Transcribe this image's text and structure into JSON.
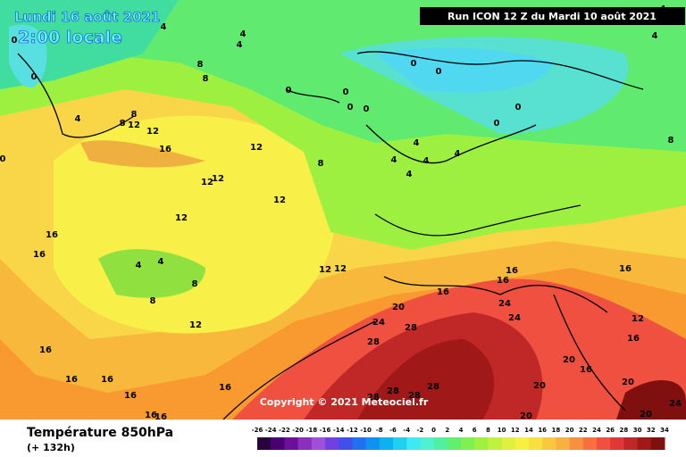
{
  "header": {
    "date": "Lundi 16 août 2021",
    "time": "2:00 locale",
    "run": "Run ICON 12 Z du Mardi 10 août 2021"
  },
  "copyright": "Copyright © 2021 Meteociel.fr",
  "footer": {
    "title": "Température 850hPa",
    "lead": "(+ 132h)"
  },
  "legend": {
    "ticks": [
      -26,
      -24,
      -22,
      -20,
      -18,
      -16,
      -14,
      -12,
      -10,
      -8,
      -6,
      -4,
      -2,
      0,
      2,
      4,
      6,
      8,
      10,
      12,
      14,
      16,
      18,
      20,
      22,
      24,
      26,
      28,
      30,
      32,
      34
    ],
    "colors": [
      "#2a0040",
      "#4a0070",
      "#6a109a",
      "#8a30c0",
      "#a050d8",
      "#7040e0",
      "#4050e8",
      "#2070f0",
      "#1090f0",
      "#10b0f0",
      "#20d0f0",
      "#40e8f0",
      "#50f0d0",
      "#50f0a0",
      "#60f070",
      "#80f050",
      "#a0f040",
      "#c0f040",
      "#e0f040",
      "#f8f040",
      "#f8e040",
      "#f8c840",
      "#f8b040",
      "#f89040",
      "#f87040",
      "#f05040",
      "#e03838",
      "#c02828",
      "#a01818",
      "#801010"
    ]
  },
  "contour_labels": [
    4,
    4,
    4,
    8,
    8,
    0,
    4,
    8,
    8,
    12,
    12,
    16,
    12,
    12,
    12,
    12,
    12,
    8,
    16,
    16,
    4,
    4,
    8,
    8,
    12,
    12,
    12,
    20,
    16,
    16,
    16,
    24,
    24,
    24,
    28,
    28,
    28,
    28,
    28,
    28,
    16,
    12,
    16,
    20,
    16,
    20,
    20,
    24,
    20,
    20,
    16,
    16,
    16,
    16,
    16,
    16,
    16,
    0,
    0,
    0,
    0,
    0,
    0,
    0,
    0,
    4,
    4,
    4,
    4,
    4,
    8,
    4,
    4,
    0,
    0
  ]
}
